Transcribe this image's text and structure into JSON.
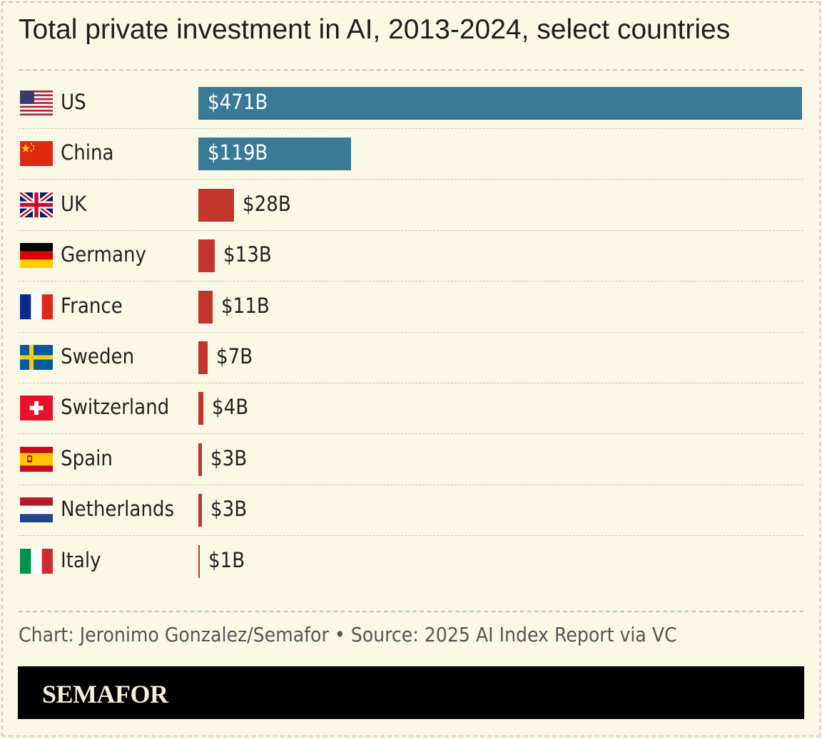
{
  "chart_data": {
    "type": "bar",
    "orientation": "horizontal",
    "title": "Total private investment in AI, 2013-2024, select countries",
    "categories": [
      "US",
      "China",
      "UK",
      "Germany",
      "France",
      "Sweden",
      "Switzerland",
      "Spain",
      "Netherlands",
      "Italy"
    ],
    "values": [
      471,
      119,
      28,
      13,
      11,
      7,
      4,
      3,
      3,
      1
    ],
    "value_labels": [
      "$471B",
      "$119B",
      "$28B",
      "$13B",
      "$11B",
      "$7B",
      "$4B",
      "$3B",
      "$3B",
      "$1B"
    ],
    "unit": "billion USD",
    "xlim": [
      0,
      471
    ],
    "xlabel": "",
    "ylabel": "",
    "colors": {
      "highlight": "#3a7a96",
      "default": "#c1352a"
    },
    "highlighted": [
      "US",
      "China"
    ],
    "flag_icons": [
      "us-flag-icon",
      "china-flag-icon",
      "uk-flag-icon",
      "germany-flag-icon",
      "france-flag-icon",
      "sweden-flag-icon",
      "switzerland-flag-icon",
      "spain-flag-icon",
      "netherlands-flag-icon",
      "italy-flag-icon"
    ]
  },
  "source": "Chart: Jeronimo Gonzalez/Semafor • Source: 2025 AI Index Report via VC",
  "footer": {
    "brand": "SEMAFOR"
  },
  "colors": {
    "background": "#fbf8e6",
    "footer_background": "#000000"
  }
}
